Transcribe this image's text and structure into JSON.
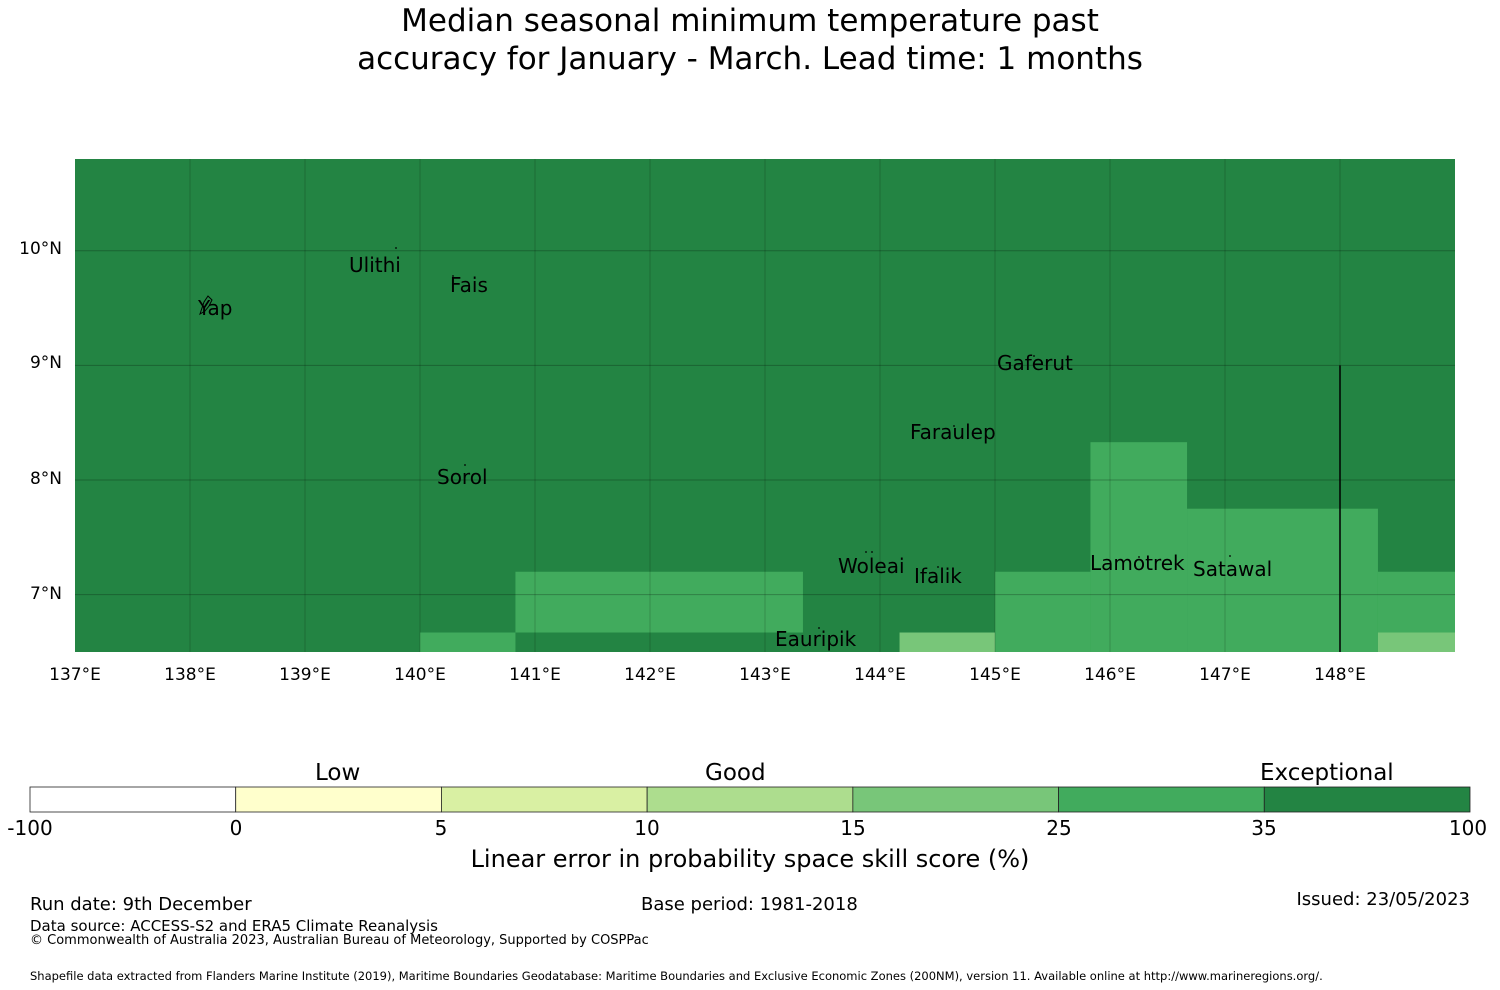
{
  "title": {
    "line1": "Median seasonal minimum temperature past",
    "line2": "accuracy for January - March. Lead time: 1 months"
  },
  "map": {
    "lat_ticks": [
      "10°N",
      "9°N",
      "8°N",
      "7°N"
    ],
    "lon_ticks": [
      "137°E",
      "138°E",
      "139°E",
      "140°E",
      "141°E",
      "142°E",
      "143°E",
      "144°E",
      "145°E",
      "146°E",
      "147°E",
      "148°E"
    ],
    "lon_range": [
      137,
      149
    ],
    "lat_range": [
      6.5,
      10.8
    ],
    "places": [
      "Ulithi",
      "Fais",
      "Yap",
      "Gaferut",
      "Faraulep",
      "Sorol",
      "Woleai",
      "Ifalik",
      "Lamotrek",
      "Satawal",
      "Eauripik"
    ],
    "background_category": "35–100",
    "regions": [
      {
        "lon": [
          140.0,
          140.83
        ],
        "lat": [
          6.5,
          6.67
        ],
        "category": "25–35"
      },
      {
        "lon": [
          140.83,
          143.33
        ],
        "lat": [
          6.67,
          7.2
        ],
        "category": "25–35"
      },
      {
        "lon": [
          144.17,
          145.0
        ],
        "lat": [
          6.5,
          6.67
        ],
        "category": "15–25"
      },
      {
        "lon": [
          145.0,
          145.83
        ],
        "lat": [
          6.5,
          7.2
        ],
        "category": "25–35"
      },
      {
        "lon": [
          145.83,
          146.67
        ],
        "lat": [
          6.5,
          8.33
        ],
        "category": "25–35"
      },
      {
        "lon": [
          146.67,
          148.33
        ],
        "lat": [
          6.5,
          7.75
        ],
        "category": "25–35"
      },
      {
        "lon": [
          148.33,
          149.0
        ],
        "lat": [
          6.67,
          7.2
        ],
        "category": "25–35"
      },
      {
        "lon": [
          148.33,
          149.0
        ],
        "lat": [
          6.5,
          6.67
        ],
        "category": "15–25"
      }
    ],
    "boundary_line": {
      "lon": 148.0,
      "lat": [
        6.5,
        9.0
      ]
    }
  },
  "legend": {
    "categories": [
      "Low",
      "Good",
      "Exceptional"
    ],
    "ticks": [
      "-100",
      "0",
      "5",
      "10",
      "15",
      "25",
      "35",
      "100"
    ],
    "colors": [
      "#ffffff",
      "#ffffcc",
      "#d9f0a3",
      "#addd8e",
      "#78c679",
      "#41ab5d",
      "#238443"
    ],
    "label": "Linear error in probability space skill score (%)"
  },
  "footer": {
    "run_date": "Run date: 9th December",
    "base_period": "Base period: 1981-2018",
    "issued": "Issued: 23/05/2023",
    "data_source": "Data source: ACCESS-S2 and ERA5 Climate Reanalysis",
    "copyright": "© Commonwealth of Australia 2023, Australian Bureau of Meteorology, Supported by COSPPac",
    "shapefile": "Shapefile data extracted from Flanders Marine Institute (2019), Maritime Boundaries Geodatabase: Maritime Boundaries and Exclusive Economic Zones (200NM), version 11. Available online at http://www.marineregions.org/."
  }
}
